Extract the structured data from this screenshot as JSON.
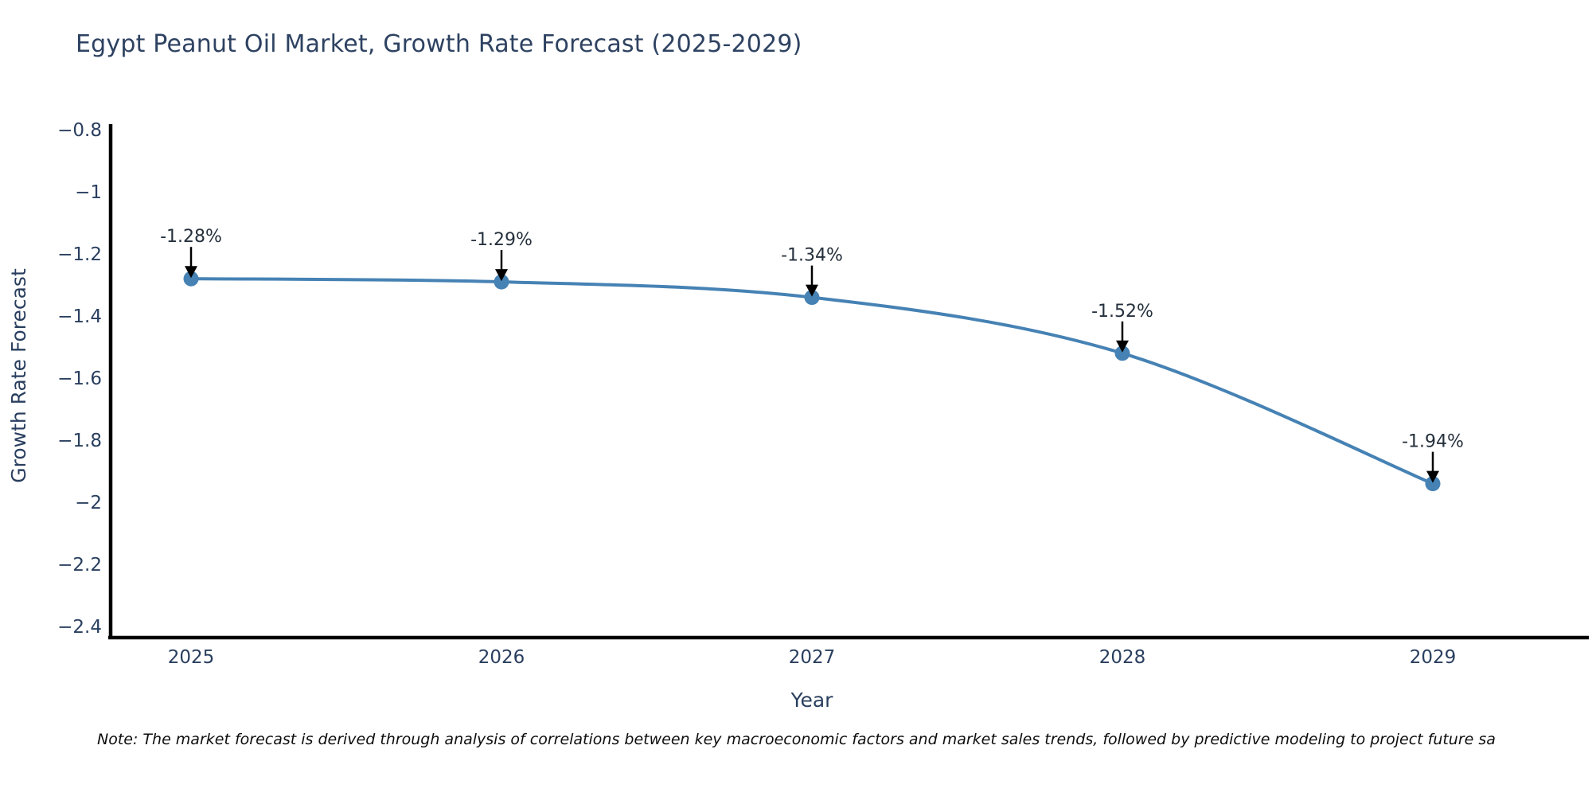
{
  "title": "Egypt Peanut Oil Market, Growth Rate Forecast (2025-2029)",
  "note": "Note: The market forecast is derived through analysis of correlations between key macroeconomic factors and market sales trends, followed by predictive modeling to project future sa",
  "chart_data": {
    "type": "line",
    "title": "Egypt Peanut Oil Market, Growth Rate Forecast (2025-2029)",
    "x": [
      2025,
      2026,
      2027,
      2028,
      2029
    ],
    "series": [
      {
        "name": "Growth Rate Forecast",
        "values": [
          -1.28,
          -1.29,
          -1.34,
          -1.52,
          -1.94
        ]
      }
    ],
    "point_labels": [
      "-1.28%",
      "-1.29%",
      "-1.34%",
      "-1.52%",
      "-1.94%"
    ],
    "xlabel": "Year",
    "ylabel": "Growth Rate Forecast",
    "xticks": [
      "2025",
      "2026",
      "2027",
      "2028",
      "2029"
    ],
    "yticks": [
      -0.8,
      -1,
      -1.2,
      -1.4,
      -1.6,
      -1.8,
      -2,
      -2.2,
      -2.4
    ],
    "ylim": [
      -2.44,
      -0.78
    ],
    "grid": false,
    "legend": "none",
    "line_color": "#4682b4",
    "marker_color": "#4682b4",
    "arrow_color": "#000000",
    "axis_color": "#000000",
    "text_color": "#2a3f5f"
  }
}
